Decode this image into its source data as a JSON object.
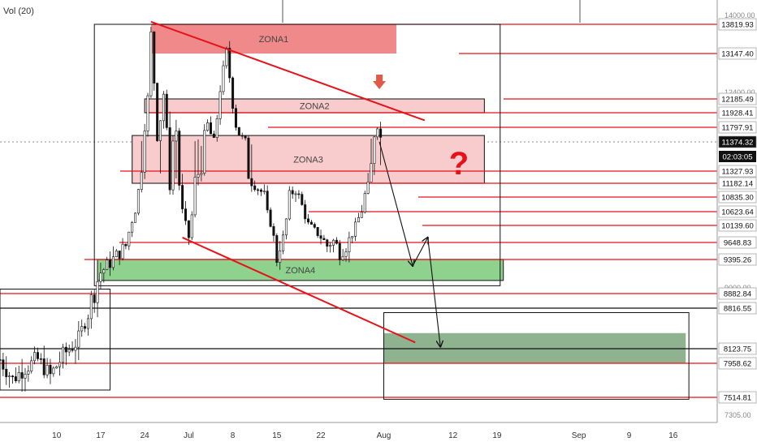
{
  "indicator": {
    "label": "Vol (20)"
  },
  "chart_data": {
    "type": "candlestick",
    "y_range": [
      7200,
      14100
    ],
    "x_range_days": [
      -14,
      100
    ],
    "x_ticks": [
      {
        "label": "10",
        "day": -5
      },
      {
        "label": "17",
        "day": 2
      },
      {
        "label": "24",
        "day": 9
      },
      {
        "label": "Jul",
        "day": 16
      },
      {
        "label": "8",
        "day": 23
      },
      {
        "label": "15",
        "day": 30
      },
      {
        "label": "22",
        "day": 37
      },
      {
        "label": "Aug",
        "day": 47
      },
      {
        "label": "12",
        "day": 58
      },
      {
        "label": "19",
        "day": 65
      },
      {
        "label": "Sep",
        "day": 78
      },
      {
        "label": "9",
        "day": 86
      },
      {
        "label": "16",
        "day": 93
      }
    ],
    "y_axis_ticks": [
      "14000.00",
      "12400.00",
      "9000.00",
      "7305.00"
    ],
    "price_levels": [
      {
        "label": "13819.93",
        "value": 13819.93
      },
      {
        "label": "13147.40",
        "value": 13147.4
      },
      {
        "label": "12185.49",
        "value": 12185.49
      },
      {
        "label": "11928.41",
        "value": 11928.41
      },
      {
        "label": "11797.91",
        "value": 11797.91
      },
      {
        "label": "11327.93",
        "value": 11327.93
      },
      {
        "label": "11182.14",
        "value": 11182.14
      },
      {
        "label": "10835.30",
        "value": 10835.3
      },
      {
        "label": "10623.64",
        "value": 10623.64
      },
      {
        "label": "10139.60",
        "value": 10139.6
      },
      {
        "label": "9648.83",
        "value": 9648.83
      },
      {
        "label": "9395.26",
        "value": 9395.26
      },
      {
        "label": "8882.84",
        "value": 8882.84
      },
      {
        "label": "7958.62",
        "value": 7958.62
      },
      {
        "label": "7514.81",
        "value": 7514.81
      }
    ],
    "black_levels": [
      {
        "label": "8816.55",
        "value": 8816.55
      },
      {
        "label": "8123.75",
        "value": 8123.75
      }
    ],
    "current_price": {
      "label": "11374.32",
      "value": 11374.32
    },
    "countdown": "02:03:05",
    "zones": [
      {
        "label": "ZONA1",
        "from": 13147.4,
        "to": 13819.93,
        "x0": 10,
        "x1": 49,
        "color": "#f08a8a"
      },
      {
        "label": "ZONA2",
        "from": 11928.41,
        "to": 12185.49,
        "x0": 9,
        "x1": 63,
        "color": "#f8cccc"
      },
      {
        "label": "ZONA3",
        "from": 11182.14,
        "to": 11560,
        "x0": 7,
        "x1": 63,
        "color": "#f8cccc"
      },
      {
        "label": "ZONA4",
        "from": 9080,
        "to": 9395.26,
        "x0": 1.5,
        "x1": 66,
        "color": "#8ed28e"
      },
      {
        "label": "",
        "from": 7958.62,
        "to": 8390,
        "x0": 47,
        "x1": 95,
        "color": "#8fb28f"
      }
    ],
    "annotations": {
      "question_mark": "?",
      "down_arrow_marker_day": 46.3,
      "trend_lines": [
        {
          "d1": 10,
          "p1": 13850,
          "d2": 53.5,
          "p2": 11860
        },
        {
          "d1": 15,
          "p1": 9790,
          "d2": 52,
          "p2": 8230
        }
      ],
      "forecast_path": [
        {
          "day": 46.3,
          "price": 11380
        },
        {
          "day": 51.6,
          "price": 9300
        },
        {
          "day": 54,
          "price": 9790
        },
        {
          "day": 56,
          "price": 8160
        }
      ],
      "boxes": [
        {
          "d1": 1,
          "p1": 13819.93,
          "d2": 65.5,
          "p2": 9000
        },
        {
          "d1": -14,
          "p1": 8950,
          "d2": 3.5,
          "p2": 7610
        },
        {
          "d1": 47,
          "p1": 8740,
          "d2": 95.5,
          "p2": 7490
        }
      ]
    }
  }
}
